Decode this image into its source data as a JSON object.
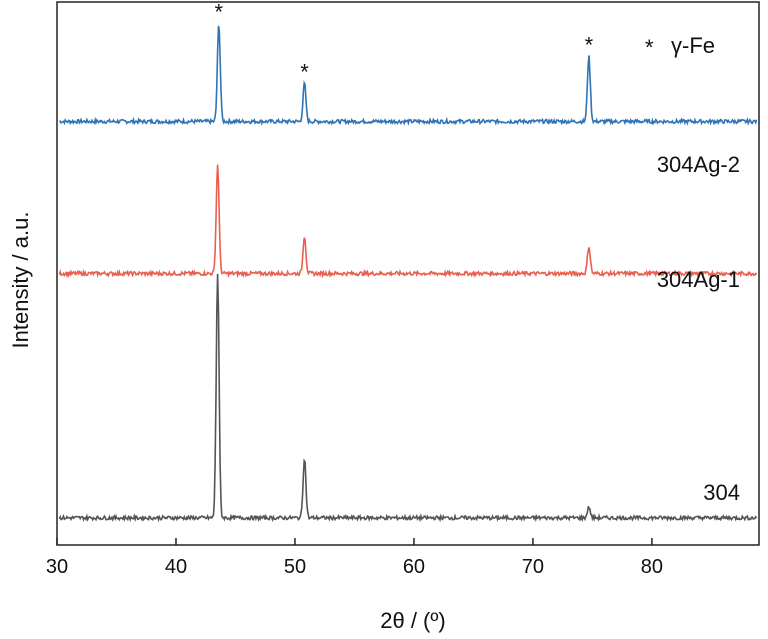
{
  "chart_data": {
    "type": "line",
    "xlabel": "2θ / (º)",
    "ylabel": "Intensity / a.u.",
    "xlim": [
      30,
      89
    ],
    "xticks": [
      30,
      40,
      50,
      60,
      70,
      80
    ],
    "y_ticks_shown": false,
    "grid": false,
    "legend": {
      "marker": "*",
      "text": "γ-Fe",
      "position": "top-right"
    },
    "peak_marker": "*",
    "peak_marker_positions": [
      43.6,
      50.8,
      74.7
    ],
    "series": [
      {
        "name": "304Ag-2",
        "color": "#2f74b5",
        "baseline": 0.78,
        "peaks": [
          {
            "x": 43.6,
            "height": 0.18
          },
          {
            "x": 50.8,
            "height": 0.07
          },
          {
            "x": 74.7,
            "height": 0.12
          }
        ]
      },
      {
        "name": "304Ag-1",
        "color": "#e8604f",
        "baseline": 0.5,
        "peaks": [
          {
            "x": 43.5,
            "height": 0.2
          },
          {
            "x": 50.8,
            "height": 0.07
          },
          {
            "x": 74.7,
            "height": 0.05
          }
        ]
      },
      {
        "name": "304",
        "color": "#555555",
        "baseline": 0.05,
        "peaks": [
          {
            "x": 43.5,
            "height": 0.45
          },
          {
            "x": 50.8,
            "height": 0.11
          },
          {
            "x": 74.7,
            "height": 0.02
          }
        ]
      }
    ]
  }
}
